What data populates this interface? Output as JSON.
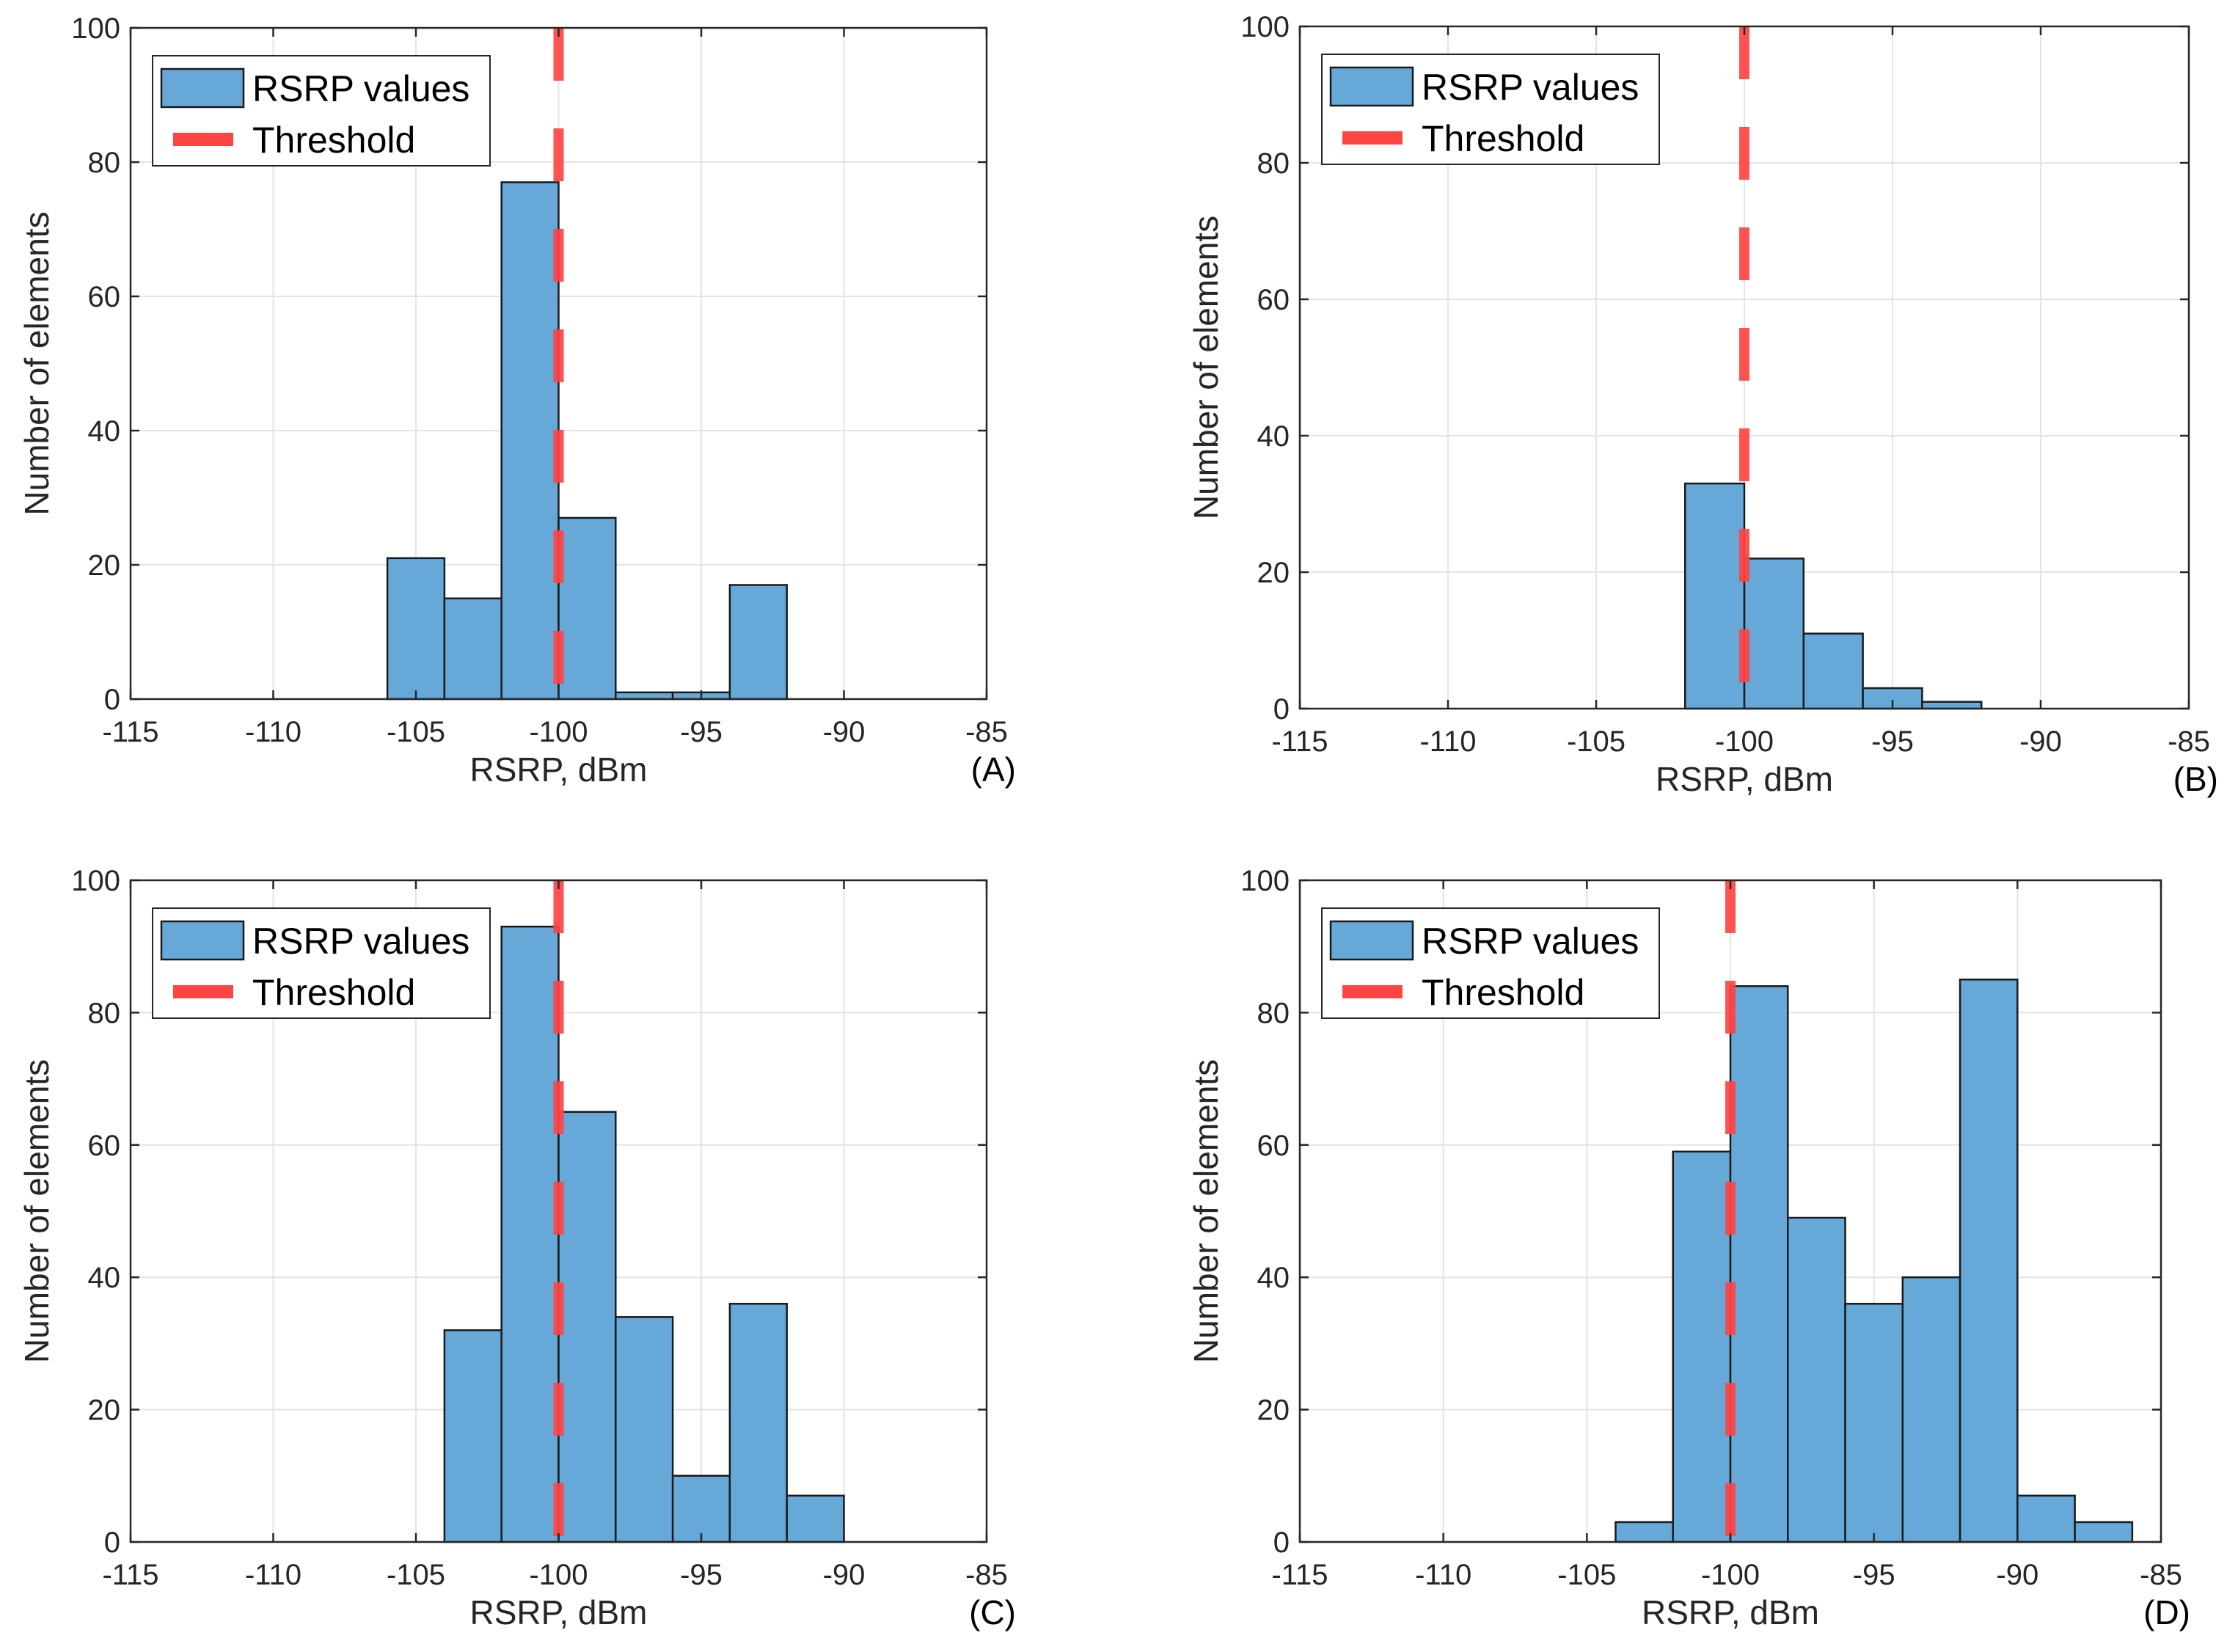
{
  "chart_data": [
    {
      "type": "bar",
      "panel": "(A)",
      "xlabel": "RSRP, dBm",
      "ylabel": "Number of elements",
      "xlim": [
        -115,
        -85
      ],
      "ylim": [
        0,
        100
      ],
      "xticks": [
        -115,
        -110,
        -105,
        -100,
        -95,
        -90,
        -85
      ],
      "yticks": [
        0,
        20,
        40,
        60,
        80,
        100
      ],
      "grid": true,
      "legend": [
        "RSRP values",
        "Threshold"
      ],
      "legend_position": "top-left",
      "threshold": -100,
      "bins": [
        {
          "from": -106,
          "to": -104,
          "count": 21
        },
        {
          "from": -104,
          "to": -102,
          "count": 15
        },
        {
          "from": -102,
          "to": -100,
          "count": 77
        },
        {
          "from": -100,
          "to": -98,
          "count": 27
        },
        {
          "from": -98,
          "to": -96,
          "count": 1
        },
        {
          "from": -96,
          "to": -94,
          "count": 1
        },
        {
          "from": -94,
          "to": -92,
          "count": 17
        }
      ]
    },
    {
      "type": "bar",
      "panel": "(B)",
      "xlabel": "RSRP, dBm",
      "ylabel": "Number of elements",
      "xlim": [
        -115,
        -85
      ],
      "ylim": [
        0,
        100
      ],
      "xticks": [
        -115,
        -110,
        -105,
        -100,
        -95,
        -90,
        -85
      ],
      "yticks": [
        0,
        20,
        40,
        60,
        80,
        100
      ],
      "grid": true,
      "legend": [
        "RSRP values",
        "Threshold"
      ],
      "legend_position": "top-left",
      "threshold": -100,
      "bins": [
        {
          "from": -102,
          "to": -100,
          "count": 33
        },
        {
          "from": -100,
          "to": -98,
          "count": 22
        },
        {
          "from": -98,
          "to": -96,
          "count": 11
        },
        {
          "from": -96,
          "to": -94,
          "count": 3
        },
        {
          "from": -94,
          "to": -92,
          "count": 1
        }
      ]
    },
    {
      "type": "bar",
      "panel": "(C)",
      "xlabel": "RSRP, dBm",
      "ylabel": "Number of elements",
      "xlim": [
        -115,
        -85
      ],
      "ylim": [
        0,
        100
      ],
      "xticks": [
        -115,
        -110,
        -105,
        -100,
        -95,
        -90,
        -85
      ],
      "yticks": [
        0,
        20,
        40,
        60,
        80,
        100
      ],
      "grid": true,
      "legend": [
        "RSRP values",
        "Threshold"
      ],
      "legend_position": "top-left",
      "threshold": -100,
      "bins": [
        {
          "from": -104,
          "to": -102,
          "count": 32
        },
        {
          "from": -102,
          "to": -100,
          "count": 93
        },
        {
          "from": -100,
          "to": -98,
          "count": 65
        },
        {
          "from": -98,
          "to": -96,
          "count": 34
        },
        {
          "from": -96,
          "to": -94,
          "count": 10
        },
        {
          "from": -94,
          "to": -92,
          "count": 36
        },
        {
          "from": -92,
          "to": -90,
          "count": 7
        }
      ]
    },
    {
      "type": "bar",
      "panel": "(D)",
      "xlabel": "RSRP, dBm",
      "ylabel": "Number of elements",
      "xlim": [
        -115,
        -85
      ],
      "ylim": [
        0,
        100
      ],
      "xticks": [
        -115,
        -110,
        -105,
        -100,
        -95,
        -90,
        -85
      ],
      "yticks": [
        0,
        20,
        40,
        60,
        80,
        100
      ],
      "grid": true,
      "legend": [
        "RSRP values",
        "Threshold"
      ],
      "legend_position": "top-left",
      "threshold": -100,
      "bins": [
        {
          "from": -104,
          "to": -102,
          "count": 3
        },
        {
          "from": -102,
          "to": -100,
          "count": 59
        },
        {
          "from": -100,
          "to": -98,
          "count": 84
        },
        {
          "from": -98,
          "to": -96,
          "count": 49
        },
        {
          "from": -96,
          "to": -94,
          "count": 36
        },
        {
          "from": -94,
          "to": -92,
          "count": 40
        },
        {
          "from": -92,
          "to": -90,
          "count": 85
        },
        {
          "from": -90,
          "to": -88,
          "count": 7
        },
        {
          "from": -88,
          "to": -86,
          "count": 3
        }
      ]
    }
  ],
  "colors": {
    "bar_fill": "#66a9d8",
    "bar_edge": "#1a1a1a",
    "threshold": "#ff4444",
    "grid": "#e4e4e4",
    "axis": "#262626"
  }
}
